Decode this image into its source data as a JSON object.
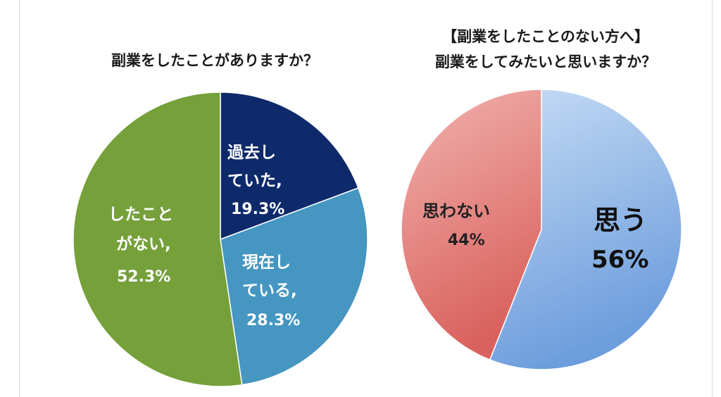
{
  "colors": {
    "left_past": "#0e2a6b",
    "left_current": "#4596c1",
    "left_never": "#75a03a",
    "right_yes_light": "#c7dcf5",
    "right_yes_dark": "#6c9ddc",
    "right_no_light": "#f2b3b0",
    "right_no_dark": "#d9625e"
  },
  "chart_data": [
    {
      "type": "pie",
      "title": "副業をしたことがありますか？",
      "slices": [
        {
          "name": "過去していた",
          "value": 19.3,
          "label_lines": [
            "過去し",
            "ていた,",
            "19.3%"
          ]
        },
        {
          "name": "現在している",
          "value": 28.3,
          "label_lines": [
            "現在し",
            "ている,",
            "28.3%"
          ]
        },
        {
          "name": "したことがない",
          "value": 52.3,
          "label_lines": [
            "したこと",
            "がない,",
            "52.3%"
          ]
        }
      ]
    },
    {
      "type": "pie",
      "title_lines": [
        "【副業をしたことのない方へ】",
        "副業をしてみたいと思いますか？"
      ],
      "slices": [
        {
          "name": "思う",
          "value": 56,
          "label_lines": [
            "思う",
            "56%"
          ]
        },
        {
          "name": "思わない",
          "value": 44,
          "label_lines": [
            "思わない",
            "44%"
          ]
        }
      ]
    }
  ]
}
